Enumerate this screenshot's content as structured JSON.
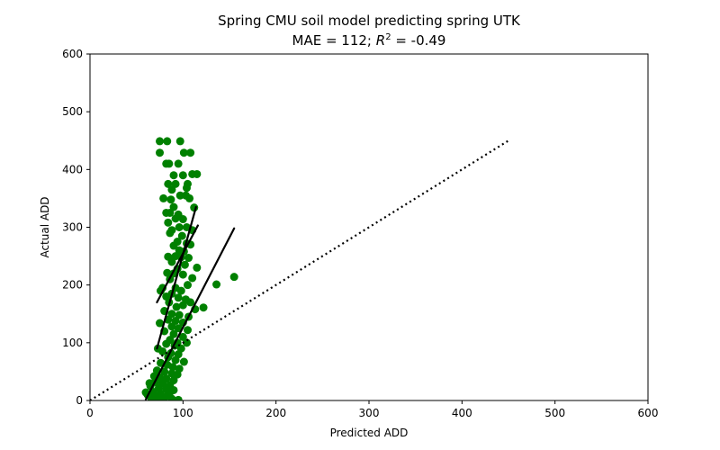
{
  "chart_data": {
    "type": "scatter",
    "title_line1": "Spring CMU soil model predicting spring UTK",
    "title_line2": {
      "prefix": "MAE = 112; ",
      "r": "R",
      "sup": "2",
      "suffix": " = -0.49"
    },
    "xlabel": "Predicted ADD",
    "ylabel": "Actual ADD",
    "xlim": [
      0,
      600
    ],
    "ylim": [
      0,
      600
    ],
    "xticks": [
      "0",
      "100",
      "200",
      "300",
      "400",
      "500",
      "600"
    ],
    "yticks": [
      "0",
      "100",
      "200",
      "300",
      "400",
      "500",
      "600"
    ],
    "grid": false,
    "point_color": "#008000",
    "line_color": "#000000",
    "points": [
      [
        75,
        449
      ],
      [
        83,
        449
      ],
      [
        97,
        449
      ],
      [
        75,
        429
      ],
      [
        101,
        429
      ],
      [
        108,
        429
      ],
      [
        82,
        410
      ],
      [
        85,
        410
      ],
      [
        95,
        410
      ],
      [
        110,
        392
      ],
      [
        115,
        392
      ],
      [
        90,
        390
      ],
      [
        100,
        390
      ],
      [
        84,
        375
      ],
      [
        92,
        375
      ],
      [
        105,
        375
      ],
      [
        88,
        365
      ],
      [
        104,
        368
      ],
      [
        79,
        350
      ],
      [
        87,
        348
      ],
      [
        97,
        355
      ],
      [
        103,
        355
      ],
      [
        107,
        350
      ],
      [
        90,
        335
      ],
      [
        112,
        334
      ],
      [
        82,
        325
      ],
      [
        86,
        325
      ],
      [
        95,
        322
      ],
      [
        100,
        314
      ],
      [
        92,
        315
      ],
      [
        84,
        308
      ],
      [
        88,
        295
      ],
      [
        96,
        300
      ],
      [
        104,
        300
      ],
      [
        110,
        295
      ],
      [
        86,
        290
      ],
      [
        99,
        285
      ],
      [
        94,
        275
      ],
      [
        104,
        272
      ],
      [
        108,
        270
      ],
      [
        90,
        268
      ],
      [
        96,
        260
      ],
      [
        101,
        258
      ],
      [
        92,
        250
      ],
      [
        84,
        249
      ],
      [
        98,
        248
      ],
      [
        106,
        247
      ],
      [
        88,
        240
      ],
      [
        102,
        235
      ],
      [
        115,
        230
      ],
      [
        94,
        228
      ],
      [
        83,
        221
      ],
      [
        90,
        220
      ],
      [
        100,
        218
      ],
      [
        110,
        212
      ],
      [
        155,
        214
      ],
      [
        105,
        200
      ],
      [
        136,
        201
      ],
      [
        86,
        210
      ],
      [
        78,
        195
      ],
      [
        92,
        195
      ],
      [
        98,
        190
      ],
      [
        88,
        185
      ],
      [
        76,
        190
      ],
      [
        82,
        180
      ],
      [
        95,
        178
      ],
      [
        103,
        175
      ],
      [
        108,
        170
      ],
      [
        85,
        170
      ],
      [
        100,
        165
      ],
      [
        93,
        162
      ],
      [
        122,
        161
      ],
      [
        113,
        158
      ],
      [
        80,
        155
      ],
      [
        88,
        150
      ],
      [
        96,
        148
      ],
      [
        106,
        145
      ],
      [
        84,
        140
      ],
      [
        92,
        138
      ],
      [
        100,
        135
      ],
      [
        75,
        134
      ],
      [
        88,
        128
      ],
      [
        95,
        125
      ],
      [
        105,
        122
      ],
      [
        80,
        120
      ],
      [
        90,
        115
      ],
      [
        100,
        110
      ],
      [
        86,
        105
      ],
      [
        94,
        100
      ],
      [
        104,
        100
      ],
      [
        82,
        98
      ],
      [
        91,
        95
      ],
      [
        98,
        90
      ],
      [
        73,
        90
      ],
      [
        78,
        85
      ],
      [
        87,
        82
      ],
      [
        95,
        80
      ],
      [
        84,
        75
      ],
      [
        92,
        70
      ],
      [
        101,
        67
      ],
      [
        76,
        65
      ],
      [
        83,
        62
      ],
      [
        89,
        58
      ],
      [
        96,
        55
      ],
      [
        72,
        52
      ],
      [
        80,
        50
      ],
      [
        88,
        47
      ],
      [
        94,
        45
      ],
      [
        75,
        40
      ],
      [
        82,
        38
      ],
      [
        90,
        35
      ],
      [
        70,
        32
      ],
      [
        78,
        30
      ],
      [
        86,
        27
      ],
      [
        65,
        25
      ],
      [
        74,
        22
      ],
      [
        82,
        20
      ],
      [
        90,
        18
      ],
      [
        68,
        15
      ],
      [
        76,
        12
      ],
      [
        84,
        10
      ],
      [
        62,
        10
      ],
      [
        70,
        8
      ],
      [
        80,
        5
      ],
      [
        88,
        3
      ],
      [
        66,
        3
      ],
      [
        74,
        1
      ],
      [
        95,
        1
      ],
      [
        60,
        14
      ],
      [
        64,
        30
      ],
      [
        69,
        42
      ],
      [
        86,
        14
      ]
    ],
    "fit_lines": [
      {
        "x": [
          72,
          116
        ],
        "y": [
          170,
          303
        ]
      },
      {
        "x": [
          72,
          114
        ],
        "y": [
          90,
          335
        ]
      },
      {
        "x": [
          60,
          155
        ],
        "y": [
          2,
          298
        ]
      }
    ],
    "reference_line": {
      "style": "dotted",
      "x": [
        0,
        450
      ],
      "y": [
        0,
        450
      ]
    }
  }
}
